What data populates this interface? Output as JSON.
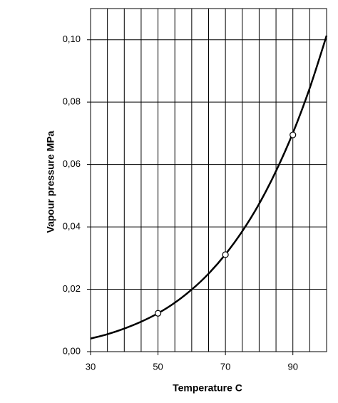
{
  "chart_data": {
    "type": "line",
    "xlabel": "Temperature C",
    "ylabel": "Vapour pressure MPa",
    "line": {
      "color": "#000000",
      "x": [
        30,
        35,
        40,
        45,
        50,
        55,
        60,
        65,
        70,
        75,
        80,
        85,
        90,
        95,
        100
      ],
      "values": [
        0.0042,
        0.0056,
        0.0074,
        0.0096,
        0.0123,
        0.0157,
        0.0199,
        0.025,
        0.0312,
        0.0386,
        0.0474,
        0.0579,
        0.0701,
        0.0845,
        0.1013
      ]
    },
    "points": {
      "color": "#ffffff",
      "x": [
        50,
        70,
        90
      ],
      "values": [
        0.0123,
        0.0311,
        0.0695
      ]
    },
    "xlim": [
      30,
      100
    ],
    "xticks": [
      30,
      50,
      70,
      90
    ],
    "x_gridlines": [
      30,
      35,
      40,
      45,
      50,
      55,
      60,
      65,
      70,
      75,
      80,
      85,
      90,
      95,
      100
    ],
    "ylim": [
      0,
      0.11
    ],
    "yticks": [
      {
        "value": 0,
        "label": "0,00"
      },
      {
        "value": 0.02,
        "label": "0,02"
      },
      {
        "value": 0.04,
        "label": "0,04"
      },
      {
        "value": 0.06,
        "label": "0,06"
      },
      {
        "value": 0.08,
        "label": "0,08"
      },
      {
        "value": 0.1,
        "label": "0,10"
      }
    ],
    "grid": true
  }
}
